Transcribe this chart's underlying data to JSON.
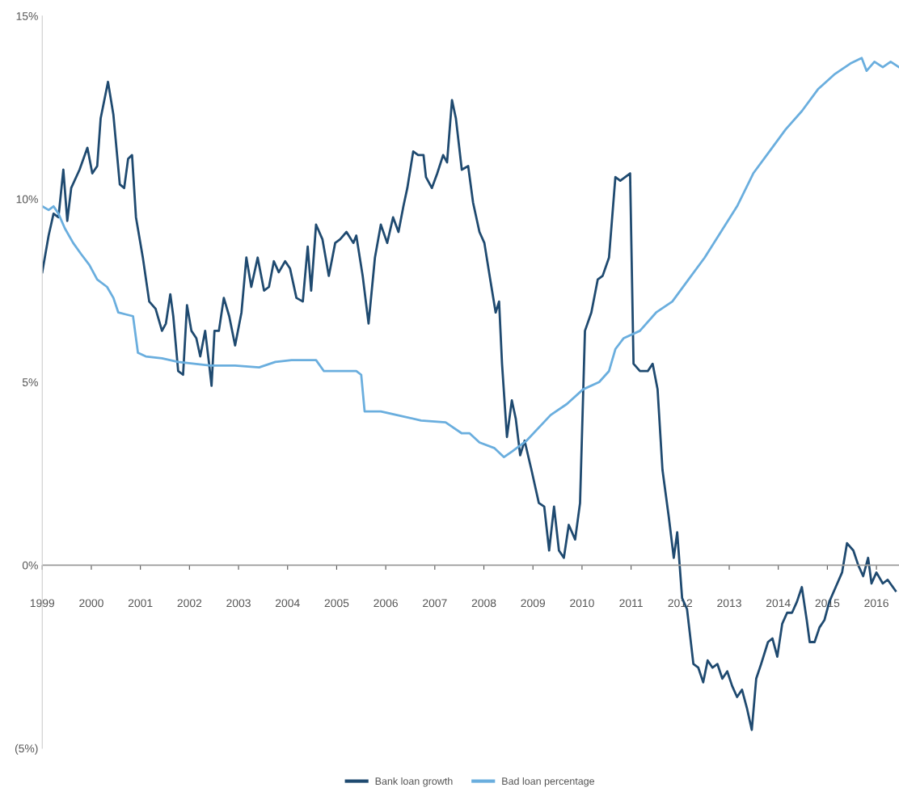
{
  "chart_data": {
    "type": "line",
    "xlim": [
      1999,
      2016.46
    ],
    "xticks": [
      1999,
      2000,
      2001,
      2002,
      2003,
      2004,
      2005,
      2006,
      2007,
      2008,
      2009,
      2010,
      2011,
      2012,
      2013,
      2014,
      2015,
      2016
    ],
    "ylim": [
      -5,
      15
    ],
    "yticks": [
      {
        "value": -5,
        "label": "(5%)"
      },
      {
        "value": 0,
        "label": "0%"
      },
      {
        "value": 5,
        "label": "5%"
      },
      {
        "value": 10,
        "label": "10%"
      },
      {
        "value": 15,
        "label": "15%"
      }
    ],
    "ref_lines": [
      {
        "axis": "y",
        "value": 0,
        "label": null,
        "color": "#9a9a9a"
      }
    ],
    "grid": false,
    "legend": "bottom",
    "marker": "none",
    "line_style": "solid",
    "series": [
      {
        "name": "Bank loan growth",
        "color": "#1f4a70",
        "x": [
          1999.0,
          1999.13,
          1999.23,
          1999.33,
          1999.43,
          1999.51,
          1999.59,
          1999.76,
          1999.92,
          2000.02,
          2000.12,
          2000.19,
          2000.34,
          2000.45,
          2000.58,
          2000.67,
          2000.75,
          2000.83,
          2000.91,
          2001.05,
          2001.18,
          2001.31,
          2001.44,
          2001.52,
          2001.61,
          2001.67,
          2001.77,
          2001.87,
          2001.95,
          2002.04,
          2002.14,
          2002.22,
          2002.32,
          2002.4,
          2002.45,
          2002.51,
          2002.6,
          2002.7,
          2002.81,
          2002.93,
          2003.06,
          2003.16,
          2003.26,
          2003.39,
          2003.52,
          2003.62,
          2003.72,
          2003.82,
          2003.95,
          2004.05,
          2004.18,
          2004.31,
          2004.41,
          2004.48,
          2004.58,
          2004.71,
          2004.84,
          2004.97,
          2005.07,
          2005.2,
          2005.34,
          2005.4,
          2005.53,
          2005.65,
          2005.78,
          2005.9,
          2006.03,
          2006.15,
          2006.26,
          2006.36,
          2006.44,
          2006.56,
          2006.66,
          2006.77,
          2006.82,
          2006.94,
          2007.05,
          2007.17,
          2007.25,
          2007.35,
          2007.43,
          2007.55,
          2007.68,
          2007.78,
          2007.91,
          2008.01,
          2008.13,
          2008.24,
          2008.31,
          2008.37,
          2008.47,
          2008.57,
          2008.65,
          2008.74,
          2008.83,
          2008.97,
          2009.12,
          2009.23,
          2009.33,
          2009.43,
          2009.53,
          2009.63,
          2009.73,
          2009.86,
          2009.96,
          2010.06,
          2010.19,
          2010.32,
          2010.42,
          2010.55,
          2010.68,
          2010.78,
          2010.88,
          2010.98,
          2011.05,
          2011.18,
          2011.34,
          2011.44,
          2011.54,
          2011.64,
          2011.77,
          2011.87,
          2011.94,
          2012.04,
          2012.14,
          2012.27,
          2012.37,
          2012.47,
          2012.56,
          2012.66,
          2012.76,
          2012.86,
          2012.96,
          2013.06,
          2013.16,
          2013.26,
          2013.36,
          2013.46,
          2013.55,
          2013.65,
          2013.79,
          2013.88,
          2013.98,
          2014.08,
          2014.18,
          2014.28,
          2014.38,
          2014.48,
          2014.58,
          2014.64,
          2014.74,
          2014.84,
          2014.94,
          2015.04,
          2015.17,
          2015.3,
          2015.4,
          2015.53,
          2015.63,
          2015.73,
          2015.83,
          2015.9,
          2016.0,
          2016.13,
          2016.23,
          2016.39
        ],
        "values": [
          8.0,
          9.0,
          9.6,
          9.5,
          10.8,
          9.4,
          10.3,
          10.8,
          11.4,
          10.7,
          10.9,
          12.2,
          13.2,
          12.3,
          10.4,
          10.3,
          11.1,
          11.2,
          9.5,
          8.4,
          7.2,
          7.0,
          6.4,
          6.6,
          7.4,
          6.8,
          5.3,
          5.2,
          7.1,
          6.4,
          6.2,
          5.7,
          6.4,
          5.5,
          4.9,
          6.4,
          6.4,
          7.3,
          6.8,
          6.0,
          6.9,
          8.4,
          7.6,
          8.4,
          7.5,
          7.6,
          8.3,
          8.0,
          8.3,
          8.1,
          7.3,
          7.2,
          8.7,
          7.5,
          9.3,
          8.9,
          7.9,
          8.8,
          8.9,
          9.1,
          8.8,
          9.0,
          7.9,
          6.6,
          8.4,
          9.3,
          8.8,
          9.5,
          9.1,
          9.8,
          10.3,
          11.3,
          11.2,
          11.2,
          10.6,
          10.3,
          10.7,
          11.2,
          11.0,
          12.7,
          12.2,
          10.8,
          10.9,
          9.9,
          9.1,
          8.8,
          7.8,
          6.9,
          7.2,
          5.5,
          3.5,
          4.5,
          4.0,
          3.0,
          3.4,
          2.6,
          1.7,
          1.6,
          0.4,
          1.6,
          0.4,
          0.2,
          1.1,
          0.7,
          1.7,
          6.4,
          6.9,
          7.8,
          7.9,
          8.4,
          10.6,
          10.5,
          10.6,
          10.7,
          5.5,
          5.3,
          5.3,
          5.5,
          4.8,
          2.6,
          1.3,
          0.2,
          0.9,
          -0.9,
          -1.2,
          -2.7,
          -2.8,
          -3.2,
          -2.6,
          -2.8,
          -2.7,
          -3.1,
          -2.9,
          -3.3,
          -3.6,
          -3.4,
          -3.9,
          -4.5,
          -3.1,
          -2.7,
          -2.1,
          -2.0,
          -2.5,
          -1.6,
          -1.3,
          -1.3,
          -1.0,
          -0.6,
          -1.5,
          -2.1,
          -2.1,
          -1.7,
          -1.5,
          -1.0,
          -0.6,
          -0.2,
          0.6,
          0.4,
          0.0,
          -0.3,
          0.2,
          -0.5,
          -0.2,
          -0.5,
          -0.4,
          -0.7
        ]
      },
      {
        "name": "Bad loan percentage",
        "color": "#6aaede",
        "x": [
          1999.0,
          1999.13,
          1999.23,
          1999.33,
          1999.46,
          1999.63,
          1999.79,
          1999.96,
          2000.12,
          2000.32,
          2000.45,
          2000.55,
          2000.7,
          2000.85,
          2000.95,
          2001.11,
          2001.44,
          2001.77,
          2002.1,
          2002.43,
          2002.93,
          2003.42,
          2003.75,
          2004.08,
          2004.58,
          2004.74,
          2005.07,
          2005.4,
          2005.5,
          2005.57,
          2005.9,
          2006.23,
          2006.72,
          2007.22,
          2007.55,
          2007.71,
          2007.91,
          2008.21,
          2008.41,
          2008.57,
          2008.87,
          2009.36,
          2009.69,
          2010.02,
          2010.35,
          2010.55,
          2010.68,
          2010.85,
          2011.18,
          2011.51,
          2011.84,
          2012.17,
          2012.5,
          2012.83,
          2013.16,
          2013.49,
          2013.82,
          2014.15,
          2014.48,
          2014.81,
          2015.14,
          2015.47,
          2015.7,
          2015.8,
          2015.96,
          2016.13,
          2016.29,
          2016.46
        ],
        "values": [
          9.8,
          9.7,
          9.8,
          9.6,
          9.2,
          8.8,
          8.5,
          8.2,
          7.8,
          7.6,
          7.3,
          6.9,
          6.85,
          6.8,
          5.8,
          5.7,
          5.65,
          5.55,
          5.5,
          5.45,
          5.45,
          5.4,
          5.55,
          5.6,
          5.6,
          5.3,
          5.3,
          5.3,
          5.2,
          4.2,
          4.2,
          4.1,
          3.95,
          3.9,
          3.6,
          3.6,
          3.35,
          3.2,
          2.95,
          3.1,
          3.4,
          4.1,
          4.4,
          4.8,
          5.0,
          5.3,
          5.9,
          6.2,
          6.4,
          6.9,
          7.2,
          7.8,
          8.4,
          9.1,
          9.8,
          10.7,
          11.3,
          11.9,
          12.4,
          13.0,
          13.4,
          13.7,
          13.85,
          13.5,
          13.75,
          13.6,
          13.75,
          13.6
        ]
      }
    ]
  }
}
